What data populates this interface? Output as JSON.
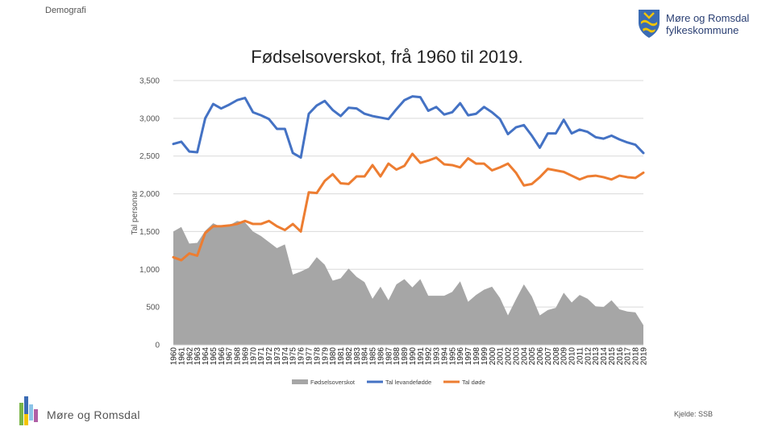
{
  "header": {
    "section_label": "Demografi",
    "brand_name_line1": "Møre og Romsdal",
    "brand_name_line2": "fylkeskommune"
  },
  "footer": {
    "brand_name": "Møre og Romsdal",
    "source": "Kjelde: SSB"
  },
  "colors": {
    "surplus_area": "#a6a6a6",
    "births_line": "#4472c4",
    "deaths_line": "#ed7d31",
    "brand_blue": "#2a3f73"
  },
  "chart_data": {
    "type": "line",
    "title": "Fødselsoverskot, frå 1960 til 2019.",
    "xlabel": "",
    "ylabel": "Tal personar",
    "ylim": [
      0,
      3500
    ],
    "yticks": [
      "0",
      "500",
      "1,000",
      "1,500",
      "2,000",
      "2,500",
      "3,000",
      "3,500"
    ],
    "ytick_values": [
      0,
      500,
      1000,
      1500,
      2000,
      2500,
      3000,
      3500
    ],
    "legend_position": "bottom",
    "categories": [
      "1960",
      "1961",
      "1962",
      "1963",
      "1964",
      "1965",
      "1966",
      "1967",
      "1968",
      "1969",
      "1970",
      "1971",
      "1972",
      "1973",
      "1974",
      "1975",
      "1976",
      "1977",
      "1978",
      "1979",
      "1980",
      "1981",
      "1982",
      "1983",
      "1984",
      "1985",
      "1986",
      "1987",
      "1988",
      "1989",
      "1990",
      "1991",
      "1992",
      "1993",
      "1994",
      "1995",
      "1996",
      "1997",
      "1998",
      "1999",
      "2000",
      "2001",
      "2002",
      "2003",
      "2004",
      "2005",
      "2006",
      "2007",
      "2008",
      "2009",
      "2010",
      "2011",
      "2012",
      "2013",
      "2014",
      "2015",
      "2016",
      "2017",
      "2018",
      "2019"
    ],
    "series": [
      {
        "name": "Fødselsoverskot",
        "kind": "area",
        "values": [
          1500,
          1560,
          1340,
          1350,
          1510,
          1610,
          1560,
          1580,
          1640,
          1620,
          1500,
          1440,
          1360,
          1280,
          1330,
          930,
          970,
          1020,
          1160,
          1060,
          850,
          880,
          1010,
          900,
          830,
          610,
          770,
          590,
          800,
          870,
          760,
          870,
          650,
          650,
          650,
          700,
          840,
          570,
          660,
          730,
          770,
          620,
          390,
          600,
          800,
          640,
          390,
          460,
          490,
          690,
          560,
          660,
          610,
          510,
          500,
          590,
          470,
          440,
          430,
          260
        ]
      },
      {
        "name": "Tal levandefødde",
        "kind": "line",
        "values": [
          2660,
          2690,
          2560,
          2550,
          3000,
          3190,
          3130,
          3180,
          3240,
          3270,
          3080,
          3040,
          2990,
          2860,
          2860,
          2540,
          2480,
          3060,
          3170,
          3230,
          3110,
          3030,
          3140,
          3130,
          3060,
          3030,
          3010,
          2990,
          3120,
          3240,
          3290,
          3280,
          3100,
          3150,
          3050,
          3080,
          3200,
          3040,
          3060,
          3150,
          3080,
          2990,
          2790,
          2880,
          2910,
          2770,
          2610,
          2800,
          2800,
          2980,
          2800,
          2850,
          2820,
          2750,
          2730,
          2770,
          2720,
          2680,
          2650,
          2540
        ]
      },
      {
        "name": "Tal døde",
        "kind": "line",
        "values": [
          1160,
          1120,
          1210,
          1180,
          1480,
          1570,
          1570,
          1580,
          1600,
          1640,
          1600,
          1600,
          1640,
          1570,
          1520,
          1600,
          1500,
          2020,
          2010,
          2170,
          2260,
          2140,
          2130,
          2230,
          2230,
          2380,
          2230,
          2400,
          2320,
          2370,
          2530,
          2410,
          2440,
          2480,
          2390,
          2380,
          2350,
          2470,
          2400,
          2400,
          2310,
          2350,
          2400,
          2280,
          2110,
          2130,
          2220,
          2330,
          2310,
          2290,
          2240,
          2190,
          2230,
          2240,
          2220,
          2190,
          2240,
          2220,
          2210,
          2280
        ]
      }
    ]
  }
}
